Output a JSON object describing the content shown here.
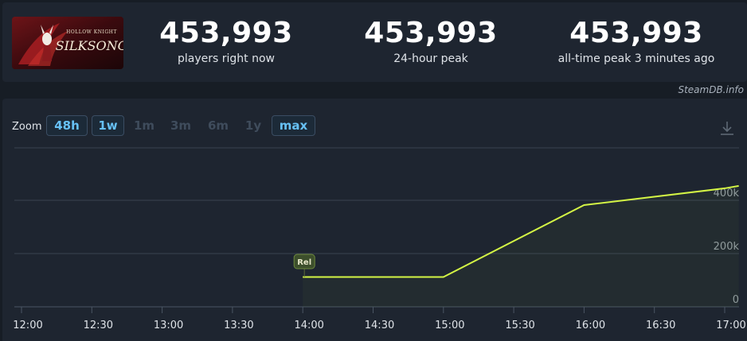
{
  "game": {
    "logo_title": "SILKSONG",
    "logo_subtitle": "HOLLOW KNIGHT"
  },
  "stats": [
    {
      "value": "453,993",
      "label": "players right now"
    },
    {
      "value": "453,993",
      "label": "24-hour peak"
    },
    {
      "value": "453,993",
      "label": "all-time peak 3 minutes ago"
    }
  ],
  "credit": "SteamDB.info",
  "zoom": {
    "label": "Zoom",
    "buttons": [
      {
        "label": "48h",
        "active": true
      },
      {
        "label": "1w",
        "active": true
      },
      {
        "label": "1m",
        "active": false
      },
      {
        "label": "3m",
        "active": false
      },
      {
        "label": "6m",
        "active": false
      },
      {
        "label": "1y",
        "active": false
      },
      {
        "label": "max",
        "active": true
      }
    ]
  },
  "colors": {
    "line": "#d4f545",
    "accent": "#67c1f5",
    "grid": "#3a4350",
    "marker": "#3d4f2c"
  },
  "chart_data": {
    "type": "line",
    "x_ticks": [
      "12:00",
      "12:30",
      "13:00",
      "13:30",
      "14:00",
      "14:30",
      "15:00",
      "15:30",
      "16:00",
      "16:30",
      "17:00"
    ],
    "y_ticks": [
      "0",
      "200k",
      "400k"
    ],
    "ylim": [
      0,
      400000
    ],
    "series": [
      {
        "points": [
          {
            "x": "14:00",
            "y": 112000
          },
          {
            "x": "15:00",
            "y": 112000
          },
          {
            "x": "16:00",
            "y": 382000
          },
          {
            "x": "17:00",
            "y": 445000
          },
          {
            "x": "17:06",
            "y": 453993
          }
        ]
      }
    ],
    "annotations": [
      {
        "x": "14:00",
        "label": "Rel"
      }
    ],
    "grid": true,
    "area_fill": true
  }
}
